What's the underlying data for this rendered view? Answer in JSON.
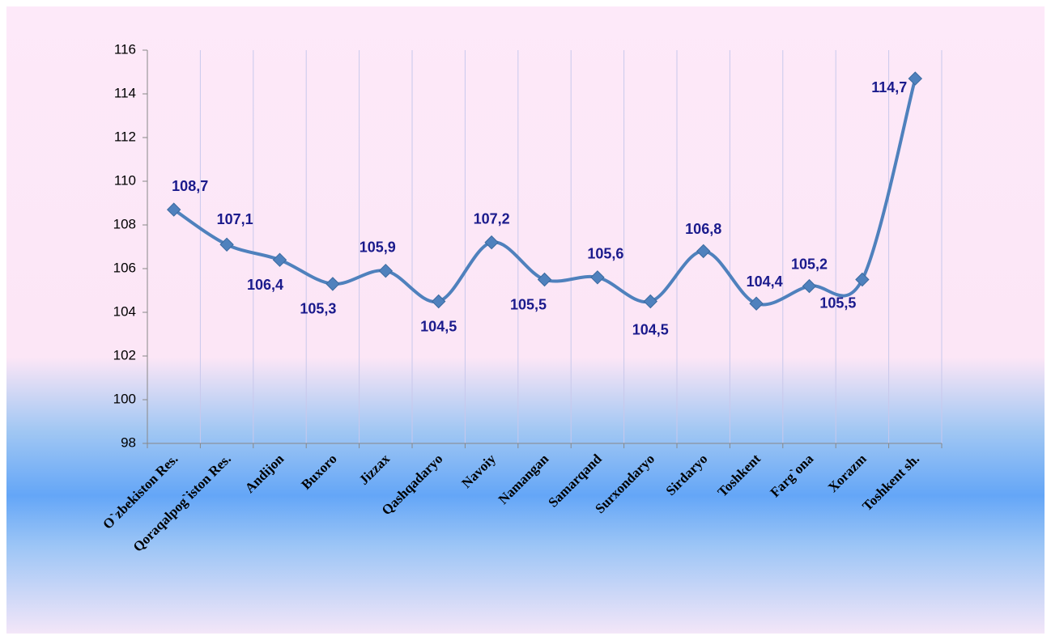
{
  "chart_data": {
    "type": "line",
    "categories": [
      "O`zbekiston Res.",
      "Qoraqalpog`iston Res.",
      "Andijon",
      "Buxoro",
      "Jizzax",
      "Qashqadaryo",
      "Navoiy",
      "Namangan",
      "Samarqand",
      "Surxondaryo",
      "Sirdaryo",
      "Toshkent",
      "Farg`ona",
      "Xorazm",
      "Toshkent sh."
    ],
    "series": [
      {
        "name": null,
        "color": "#4f81bd",
        "values": [
          108.7,
          107.1,
          106.4,
          105.3,
          105.9,
          104.5,
          107.2,
          105.5,
          105.6,
          104.5,
          106.8,
          104.4,
          105.2,
          105.5,
          114.7
        ],
        "value_labels": [
          "108,7",
          "107,1",
          "106,4",
          "105,3",
          "105,9",
          "104,5",
          "107,2",
          "105,5",
          "105,6",
          "104,5",
          "106,8",
          "104,4",
          "105,2",
          "105,5",
          "114,7"
        ]
      }
    ],
    "ylim": [
      98,
      116
    ],
    "yticks": [
      98,
      100,
      102,
      104,
      106,
      108,
      110,
      112,
      114,
      116
    ],
    "grid": true
  }
}
